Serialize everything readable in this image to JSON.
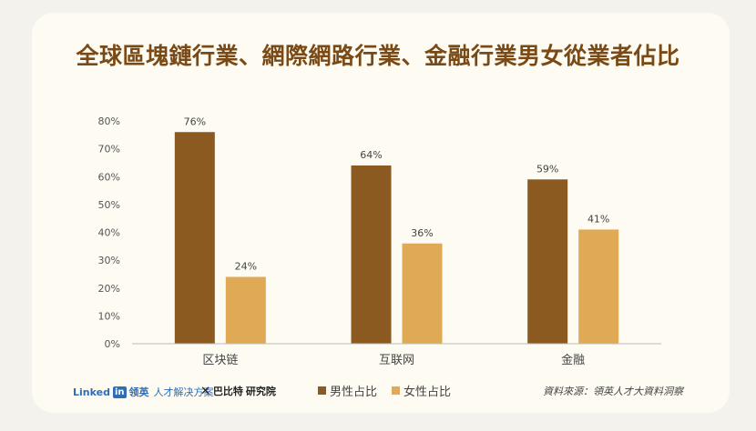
{
  "title": "全球區塊鏈行業、網際網路行業、金融行業男女從業者佔比",
  "chart_data": {
    "type": "bar",
    "categories": [
      "区块链",
      "互联网",
      "金融"
    ],
    "series": [
      {
        "name": "男性占比",
        "values": [
          76,
          64,
          59
        ],
        "labels": [
          "76%",
          "64%",
          "59%"
        ],
        "color": "#8b5a20"
      },
      {
        "name": "女性占比",
        "values": [
          24,
          36,
          41
        ],
        "labels": [
          "24%",
          "36%",
          "41%"
        ],
        "color": "#e0a955"
      }
    ],
    "ylim": [
      0,
      80
    ],
    "yticks": [
      0,
      10,
      20,
      30,
      40,
      50,
      60,
      70,
      80
    ],
    "ytick_labels": [
      "0%",
      "10%",
      "20%",
      "30%",
      "40%",
      "50%",
      "60%",
      "70%",
      "80%"
    ],
    "grid": false,
    "legend": "bottom"
  },
  "footer": {
    "linkedin_text": "Linked",
    "linkedin_badge": "in",
    "linkedin_cn": "领英",
    "linkedin_sub": "人才解决方案",
    "partner_mark": "✕",
    "partner_name": "巴比特",
    "partner_sub": "研究院",
    "source": "資料來源：領英人才大資料洞察"
  },
  "colors": {
    "title": "#7a4a16",
    "axis": "#bbbbbb",
    "tick_text": "#555555"
  }
}
